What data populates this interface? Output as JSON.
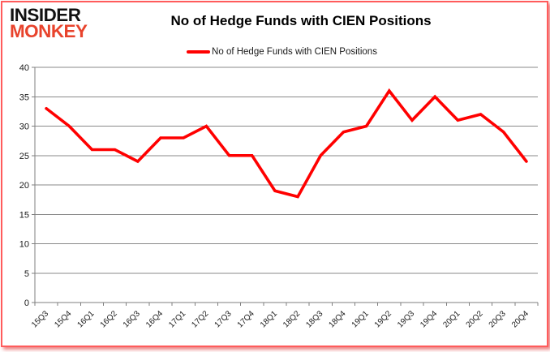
{
  "logo": {
    "line1": "INSIDER",
    "line2": "MONKEY",
    "accent_color": "#e8432c"
  },
  "header": {
    "title": "No of Hedge Funds with CIEN Positions"
  },
  "legend": {
    "label": "No of Hedge Funds with CIEN Positions",
    "swatch_color": "#ff0000"
  },
  "chart_data": {
    "type": "line",
    "title": "No of Hedge Funds with CIEN Positions",
    "categories": [
      "15Q3",
      "15Q4",
      "16Q1",
      "16Q2",
      "16Q3",
      "16Q4",
      "17Q1",
      "17Q2",
      "17Q3",
      "17Q4",
      "18Q1",
      "18Q2",
      "18Q3",
      "18Q4",
      "19Q1",
      "19Q2",
      "19Q3",
      "19Q4",
      "20Q1",
      "20Q2",
      "20Q3",
      "20Q4"
    ],
    "series": [
      {
        "name": "No of Hedge Funds with CIEN Positions",
        "color": "#ff0000",
        "values": [
          33,
          30,
          26,
          26,
          24,
          28,
          28,
          30,
          25,
          25,
          19,
          18,
          25,
          29,
          30,
          36,
          31,
          35,
          31,
          32,
          29,
          24
        ]
      }
    ],
    "ylim": [
      0,
      40
    ],
    "ytick_step": 5,
    "grid": true,
    "legend_position": "top",
    "xlabel": "",
    "ylabel": "",
    "grid_color": "#8a8a8a",
    "axis_color": "#7f7f7f",
    "label_color": "#1a1a1a"
  },
  "frame": {
    "border_color": "#ff5c5c"
  }
}
